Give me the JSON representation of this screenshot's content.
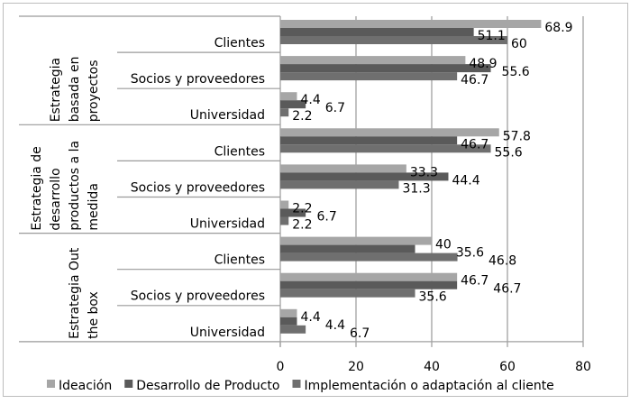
{
  "chart_data": {
    "type": "bar",
    "orientation": "horizontal",
    "title": "",
    "xlabel": "",
    "ylabel": "",
    "xlim": [
      0,
      80
    ],
    "xticks": [
      "0",
      "20",
      "40",
      "60",
      "80"
    ],
    "grid": true,
    "legend_position": "bottom",
    "groups": [
      {
        "label": "Estrategia basada en proyectos",
        "lines": [
          "Estrategia",
          "basada en",
          "proyectos"
        ]
      },
      {
        "label": "Estrategia de desarrollo productos a la medida",
        "lines": [
          "Estrategia de",
          "desarrollo",
          "productos a la",
          "medida"
        ]
      },
      {
        "label": "Estrategia Out the box",
        "lines": [
          "Estrategia Out",
          "the box"
        ]
      }
    ],
    "categories": [
      "Clientes",
      "Socios y proveedores",
      "Universidad"
    ],
    "series": [
      {
        "name": "Ideación",
        "color": "#a6a6a6",
        "values": [
          [
            68.9,
            48.9,
            4.4
          ],
          [
            57.8,
            33.3,
            2.2
          ],
          [
            40,
            46.7,
            4.4
          ]
        ]
      },
      {
        "name": "Desarrollo de Producto",
        "color": "#5a5a5a",
        "values": [
          [
            51.1,
            55.6,
            6.7
          ],
          [
            46.7,
            44.4,
            6.7
          ],
          [
            35.6,
            46.7,
            4.4
          ]
        ]
      },
      {
        "name": "Implementación o adaptación al cliente",
        "color": "#6f6f6f",
        "values": [
          [
            60,
            46.7,
            2.2
          ],
          [
            55.6,
            31.3,
            2.2
          ],
          [
            46.8,
            35.6,
            6.7
          ]
        ]
      }
    ]
  }
}
